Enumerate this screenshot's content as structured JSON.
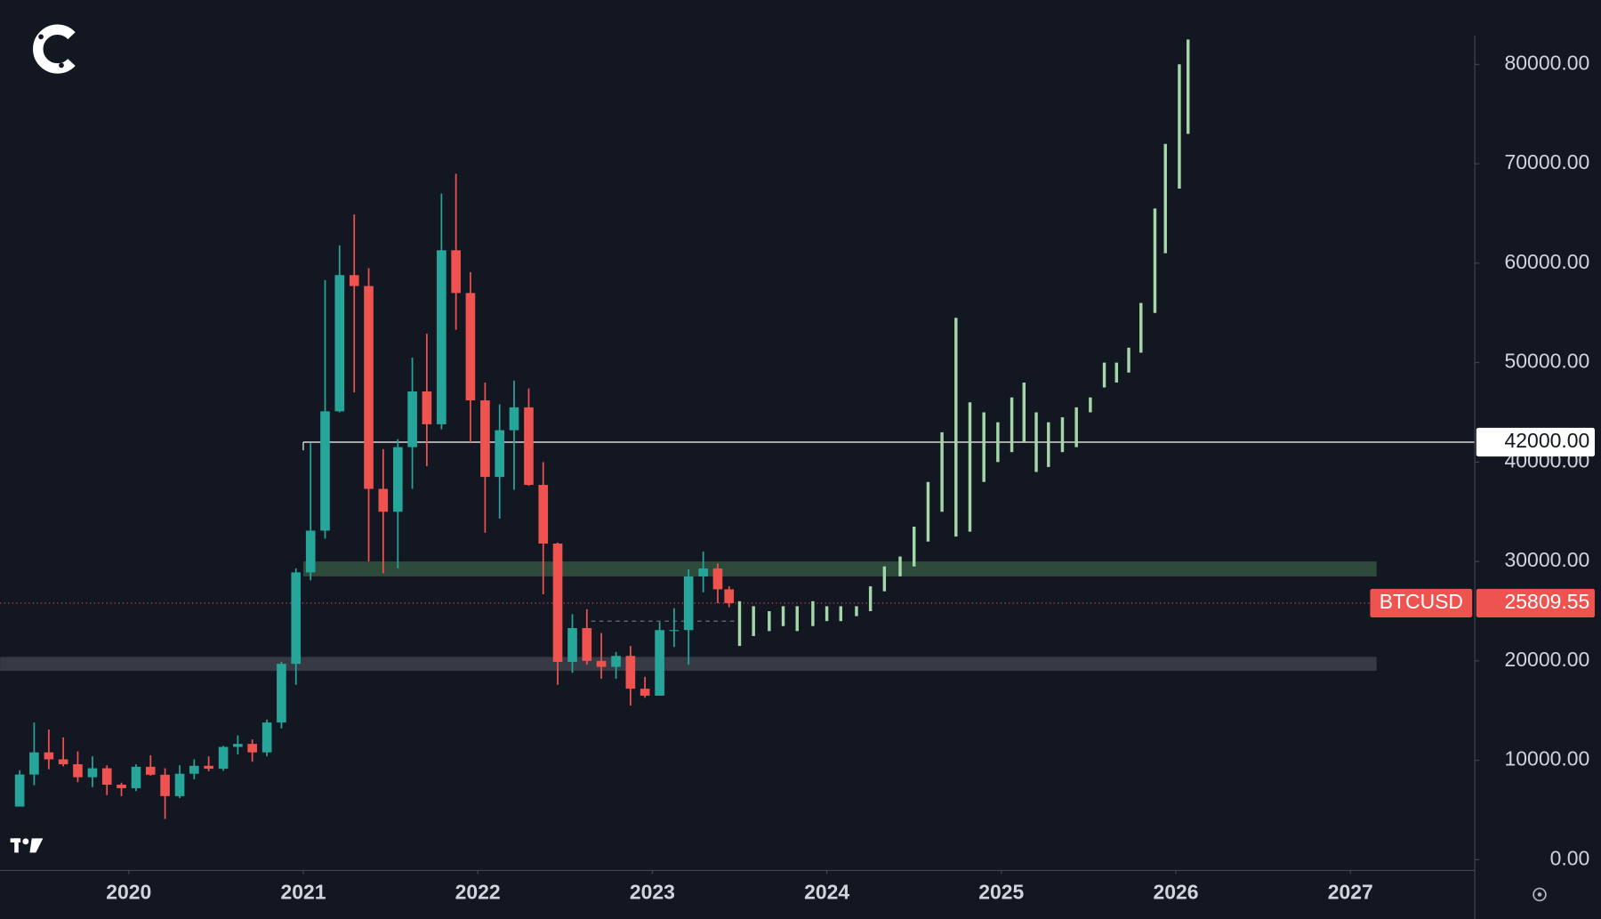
{
  "chart_data": {
    "type": "candlestick",
    "symbol": "BTCUSD",
    "up_color": "#26a69a",
    "down_color": "#ef5350",
    "xlim": [
      2019.263,
      2027.71
    ],
    "xticks": [
      2020,
      2021,
      2022,
      2023,
      2024,
      2025,
      2026,
      2027
    ],
    "ylim": [
      -1030,
      86470
    ],
    "yticks": [
      {
        "value": 0,
        "label": "0.00"
      },
      {
        "value": 10000,
        "label": "10000.00"
      },
      {
        "value": 20000,
        "label": "20000.00"
      },
      {
        "value": 30000,
        "label": "30000.00"
      },
      {
        "value": 40000,
        "label": "40000.00"
      },
      {
        "value": 50000,
        "label": "50000.00"
      },
      {
        "value": 60000,
        "label": "60000.00"
      },
      {
        "value": 70000,
        "label": "70000.00"
      },
      {
        "value": 80000,
        "label": "80000.00"
      }
    ],
    "candles": {
      "x": [
        2019.375,
        2019.458,
        2019.542,
        2019.625,
        2019.708,
        2019.792,
        2019.875,
        2019.958,
        2020.042,
        2020.125,
        2020.208,
        2020.292,
        2020.375,
        2020.458,
        2020.542,
        2020.625,
        2020.708,
        2020.792,
        2020.875,
        2020.958,
        2021.042,
        2021.125,
        2021.208,
        2021.292,
        2021.375,
        2021.458,
        2021.542,
        2021.625,
        2021.708,
        2021.792,
        2021.875,
        2021.958,
        2022.042,
        2022.125,
        2022.208,
        2022.292,
        2022.375,
        2022.458,
        2022.542,
        2022.625,
        2022.708,
        2022.792,
        2022.875,
        2022.958,
        2023.042,
        2023.125,
        2023.208,
        2023.292,
        2023.375,
        2023.44
      ],
      "open": [
        5350,
        8570,
        10800,
        10100,
        9600,
        8300,
        9200,
        7550,
        7200,
        9350,
        8550,
        6400,
        8650,
        9450,
        9150,
        11350,
        11650,
        10800,
        13800,
        19700,
        28900,
        33100,
        45100,
        58800,
        57700,
        37300,
        35000,
        41500,
        47100,
        43800,
        61300,
        57000,
        46200,
        38500,
        43200,
        45500,
        37700,
        31800,
        19900,
        23300,
        20000,
        19400,
        20500,
        17200,
        16500,
        23100,
        23100,
        28500,
        29300,
        27200
      ],
      "high": [
        9000,
        13800,
        13100,
        12300,
        10900,
        10400,
        9500,
        7750,
        9600,
        10500,
        9200,
        9500,
        10100,
        10400,
        11450,
        12500,
        12100,
        14100,
        19900,
        29300,
        41900,
        58300,
        61800,
        64900,
        59500,
        41300,
        42300,
        50500,
        52900,
        67000,
        69000,
        59100,
        48000,
        45800,
        48200,
        47400,
        40000,
        31900,
        24700,
        25200,
        22800,
        20900,
        21500,
        18400,
        23900,
        25300,
        29200,
        31000,
        29800,
        27500
      ],
      "low": [
        5350,
        7500,
        9100,
        9400,
        7800,
        7300,
        6500,
        6400,
        6900,
        8450,
        4100,
        6200,
        8100,
        8900,
        8950,
        10600,
        9850,
        10400,
        13200,
        17600,
        28100,
        32300,
        45000,
        47000,
        30000,
        28800,
        29300,
        37300,
        39600,
        43300,
        53300,
        42000,
        32900,
        34300,
        37200,
        37600,
        26700,
        17600,
        18800,
        19600,
        18200,
        18200,
        15500,
        16300,
        16500,
        21400,
        19600,
        26900,
        25800,
        25400
      ],
      "close": [
        8570,
        10800,
        10100,
        9600,
        8300,
        9200,
        7550,
        7200,
        9350,
        8550,
        6400,
        8650,
        9450,
        9150,
        11350,
        11650,
        10800,
        13800,
        19700,
        28900,
        33100,
        45100,
        58800,
        57700,
        37300,
        35000,
        41500,
        47100,
        43800,
        61300,
        57000,
        46200,
        38500,
        43200,
        45500,
        37700,
        31800,
        19900,
        23300,
        20000,
        19400,
        20500,
        17200,
        16500,
        23100,
        23100,
        28500,
        29300,
        27200,
        25809.55
      ]
    },
    "projection": {
      "color": "#a5d6a7",
      "x": [
        2023.5,
        2023.58,
        2023.67,
        2023.75,
        2023.83,
        2023.92,
        2024.0,
        2024.08,
        2024.17,
        2024.25,
        2024.33,
        2024.42,
        2024.5,
        2024.58,
        2024.66,
        2024.74,
        2024.82,
        2024.9,
        2024.98,
        2025.06,
        2025.13,
        2025.2,
        2025.27,
        2025.35,
        2025.43,
        2025.51,
        2025.59,
        2025.66,
        2025.73,
        2025.8,
        2025.88,
        2025.94,
        2026.02,
        2026.07
      ],
      "low": [
        21500,
        22500,
        23000,
        23500,
        23000,
        23500,
        24000,
        24000,
        24500,
        25000,
        27000,
        28500,
        29500,
        32000,
        35000,
        32500,
        33000,
        38000,
        40000,
        41000,
        42000,
        39000,
        39500,
        41000,
        41500,
        45000,
        47500,
        48000,
        49000,
        51000,
        55000,
        61000,
        67500,
        73000
      ],
      "high": [
        26000,
        25500,
        25000,
        25500,
        25500,
        26000,
        25500,
        25500,
        25500,
        27500,
        29500,
        30500,
        33500,
        38000,
        43000,
        54500,
        46000,
        45000,
        44000,
        46500,
        48000,
        45000,
        44000,
        44500,
        45500,
        46500,
        50000,
        50000,
        51500,
        56000,
        65500,
        72000,
        80000,
        82500
      ]
    },
    "zones": [
      {
        "low": 28500,
        "high": 30000,
        "start": 2021.0,
        "end": 2027.15,
        "color": "#2d4a3a"
      },
      {
        "low": 19000,
        "high": 20400,
        "start": 2019.263,
        "end": 2027.15,
        "color": "#363a45"
      }
    ],
    "level": {
      "value": 42000,
      "label": "42000.00",
      "start": 2021.0,
      "color": "#ffffff"
    },
    "range_line": {
      "value": 24000,
      "start": 2022.65,
      "end": 2023.5
    },
    "price": {
      "symbol": "BTCUSD",
      "value": 25809.55,
      "color": "#ef5350"
    }
  }
}
